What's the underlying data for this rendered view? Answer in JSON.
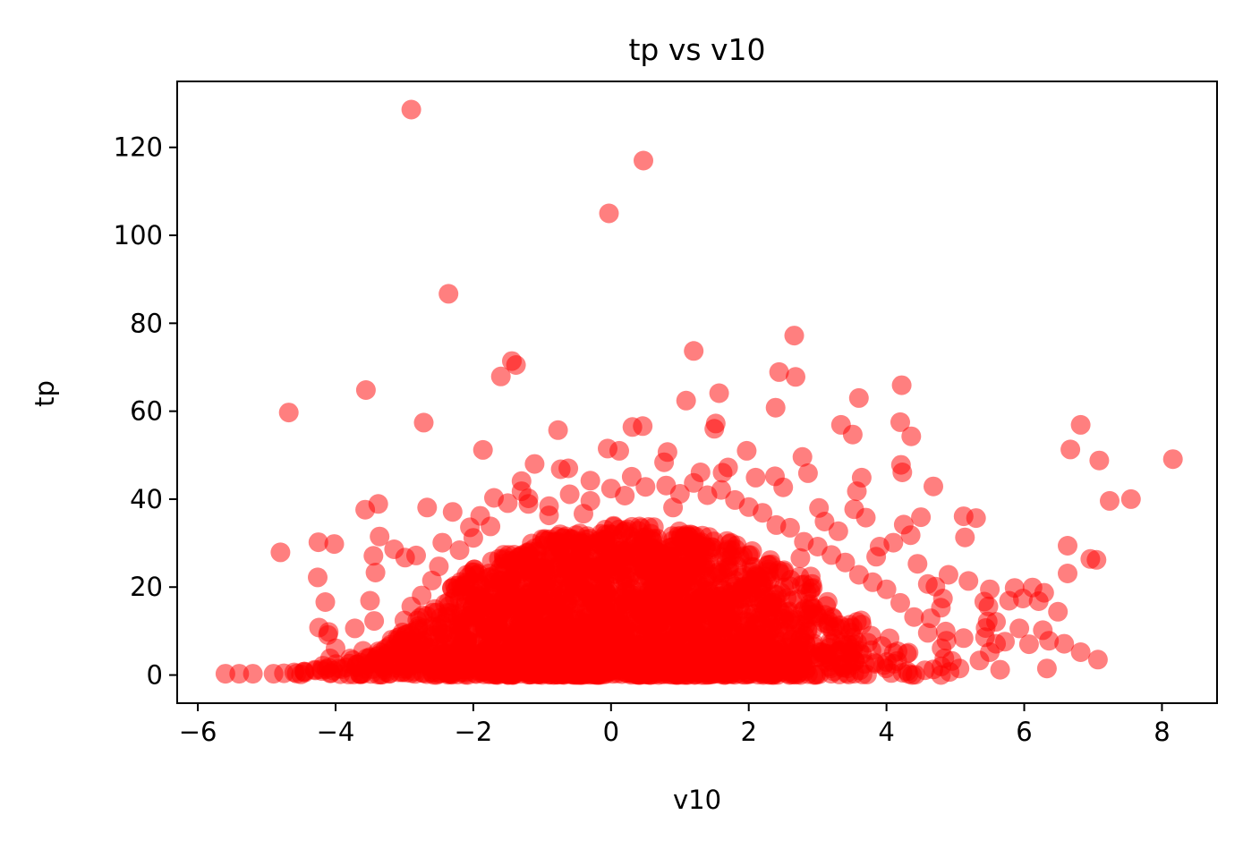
{
  "chart_data": {
    "type": "scatter",
    "title": "tp vs v10",
    "xlabel": "v10",
    "ylabel": "tp",
    "xlim": [
      -6.3,
      8.8
    ],
    "ylim": [
      -6.4,
      135
    ],
    "xticks": [
      -6,
      -4,
      -2,
      0,
      2,
      4,
      6,
      8
    ],
    "xtick_labels": [
      "−6",
      "−4",
      "−2",
      "0",
      "2",
      "4",
      "6",
      "8"
    ],
    "yticks": [
      0,
      20,
      40,
      60,
      80,
      100,
      120
    ],
    "ytick_labels": [
      "0",
      "20",
      "40",
      "60",
      "80",
      "100",
      "120"
    ],
    "grid": false,
    "legend": "none",
    "marker_color": "#ff0000",
    "marker_alpha": 0.5,
    "series": [
      {
        "points": [
          [
            -2.9,
            128.6
          ],
          [
            0.47,
            117
          ],
          [
            -0.03,
            105
          ],
          [
            -2.36,
            86.7
          ],
          [
            2.66,
            77.2
          ],
          [
            1.2,
            73.7
          ],
          [
            -1.44,
            71.4
          ],
          [
            -1.38,
            70.5
          ],
          [
            -1.6,
            67.9
          ],
          [
            2.44,
            68.9
          ],
          [
            2.68,
            67.8
          ],
          [
            4.22,
            65.9
          ],
          [
            -3.56,
            64.8
          ],
          [
            1.57,
            64.1
          ],
          [
            3.6,
            63
          ],
          [
            1.09,
            62.4
          ],
          [
            2.39,
            60.8
          ],
          [
            -4.68,
            59.7
          ],
          [
            -2.72,
            57.4
          ],
          [
            4.2,
            57.5
          ],
          [
            6.82,
            56.9
          ],
          [
            0.46,
            56.6
          ],
          [
            1.52,
            57.2
          ],
          [
            3.34,
            56.9
          ],
          [
            1.5,
            56
          ],
          [
            -0.77,
            55.7
          ],
          [
            3.51,
            54.7
          ],
          [
            4.36,
            54.3
          ],
          [
            0.31,
            56.4
          ],
          [
            -0.05,
            51.5
          ],
          [
            -1.86,
            51.2
          ],
          [
            1.97,
            51
          ],
          [
            2.78,
            49.6
          ],
          [
            0.82,
            50.7
          ],
          [
            8.16,
            49.1
          ],
          [
            6.67,
            51.3
          ],
          [
            7.09,
            48.8
          ],
          [
            0.77,
            48.4
          ],
          [
            0.12,
            51
          ],
          [
            -1.11,
            48
          ],
          [
            -0.62,
            47
          ],
          [
            1.62,
            46
          ],
          [
            4.23,
            46.1
          ],
          [
            4.21,
            47.8
          ],
          [
            4.68,
            42.9
          ],
          [
            2.38,
            45.2
          ],
          [
            2.86,
            45.9
          ],
          [
            0.3,
            45.1
          ],
          [
            -0.3,
            44.2
          ],
          [
            -0.73,
            46.8
          ],
          [
            -1.3,
            44.1
          ],
          [
            7.55,
            40
          ],
          [
            7.24,
            39.6
          ],
          [
            3.53,
            37.7
          ],
          [
            3.64,
            44.9
          ],
          [
            3.57,
            41.8
          ],
          [
            3.02,
            38
          ],
          [
            -3.38,
            38.9
          ],
          [
            -3.57,
            37.6
          ],
          [
            -2.67,
            38.1
          ],
          [
            -2.3,
            37.1
          ],
          [
            -4.25,
            30.2
          ],
          [
            -4.02,
            29.8
          ],
          [
            -4.8,
            27.9
          ],
          [
            -3.36,
            31.5
          ],
          [
            -3.15,
            28.6
          ],
          [
            -2.99,
            26.7
          ],
          [
            -2.83,
            27.2
          ],
          [
            -3.45,
            27.1
          ],
          [
            -2.45,
            30.1
          ],
          [
            -3.42,
            23.3
          ],
          [
            -4.26,
            22.2
          ],
          [
            -4.15,
            16.6
          ],
          [
            -3.5,
            16.9
          ],
          [
            -4.24,
            10.8
          ],
          [
            -4.1,
            9.8
          ],
          [
            -3.72,
            10.6
          ],
          [
            -3.44,
            12.3
          ],
          [
            -4.11,
            9.1
          ],
          [
            -4.0,
            6.1
          ],
          [
            -3.6,
            5.5
          ],
          [
            -3.2,
            6.9
          ],
          [
            -4.08,
            3.8
          ],
          [
            6.63,
            29.4
          ],
          [
            6.63,
            23.1
          ],
          [
            6.96,
            26.4
          ],
          [
            7.05,
            26.2
          ],
          [
            5.12,
            36.1
          ],
          [
            5.3,
            35.7
          ],
          [
            5.14,
            31.3
          ],
          [
            6.29,
            18.7
          ],
          [
            6.12,
            19.9
          ],
          [
            5.86,
            19.8
          ],
          [
            5.78,
            16.9
          ],
          [
            6.21,
            16.8
          ],
          [
            5.98,
            17.4
          ],
          [
            5.5,
            19.5
          ],
          [
            5.48,
            15.6
          ],
          [
            5.47,
            12.2
          ],
          [
            5.44,
            10.7
          ],
          [
            5.43,
            8.6
          ],
          [
            5.59,
            12.1
          ],
          [
            5.42,
            16.7
          ],
          [
            6.49,
            14.4
          ],
          [
            5.93,
            10.6
          ],
          [
            6.27,
            10.2
          ],
          [
            6.36,
            7.8
          ],
          [
            6.07,
            7.0
          ],
          [
            6.58,
            7.1
          ],
          [
            6.33,
            1.5
          ],
          [
            6.82,
            5.2
          ],
          [
            7.07,
            3.5
          ],
          [
            5.65,
            1.2
          ],
          [
            5.59,
            7.1
          ],
          [
            5.72,
            7.6
          ],
          [
            5.5,
            5.2
          ],
          [
            5.35,
            3.3
          ],
          [
            5.12,
            8.4
          ],
          [
            5.19,
            21.4
          ],
          [
            4.9,
            22.8
          ],
          [
            4.79,
            15.3
          ],
          [
            4.86,
            9.9
          ],
          [
            4.87,
            7.8
          ],
          [
            4.64,
            12.9
          ],
          [
            4.71,
            20.1
          ],
          [
            4.82,
            17.4
          ],
          [
            5.06,
            1.5
          ],
          [
            4.68,
            1.3
          ],
          [
            4.84,
            3.8
          ],
          [
            -5.6,
            0.3
          ],
          [
            -5.4,
            0.3
          ],
          [
            -5.2,
            0.3
          ],
          [
            -4.9,
            0.3
          ],
          [
            -4.75,
            0.4
          ],
          [
            -4.6,
            0.6
          ],
          [
            -4.45,
            0.8
          ],
          [
            -4.3,
            1.2
          ],
          [
            -4.2,
            0.9
          ],
          [
            -4.1,
            1.7
          ],
          [
            -3.95,
            1.5
          ],
          [
            -3.8,
            2.6
          ],
          [
            -3.7,
            1.8
          ],
          [
            -3.55,
            3.8
          ],
          [
            -3.4,
            4.2
          ],
          [
            -3.25,
            4.8
          ],
          [
            -3.1,
            8.5
          ],
          [
            -3.0,
            12.4
          ],
          [
            -2.9,
            15.6
          ],
          [
            -2.75,
            18.1
          ],
          [
            -2.6,
            21.5
          ],
          [
            -2.5,
            24.7
          ],
          [
            -2.2,
            28.4
          ],
          [
            -2.05,
            33.6
          ],
          [
            -1.9,
            36.2
          ],
          [
            -1.7,
            40.3
          ],
          [
            -1.5,
            39.1
          ],
          [
            -1.3,
            41.8
          ],
          [
            -1.2,
            40.2
          ],
          [
            -0.9,
            38.4
          ],
          [
            -0.6,
            41.1
          ],
          [
            -0.3,
            39.6
          ],
          [
            0.0,
            42.4
          ],
          [
            0.2,
            40.8
          ],
          [
            0.5,
            42.8
          ],
          [
            0.8,
            43.1
          ],
          [
            1.0,
            41.2
          ],
          [
            1.2,
            43.7
          ],
          [
            1.4,
            40.9
          ],
          [
            1.6,
            42.1
          ],
          [
            1.8,
            39.8
          ],
          [
            2.0,
            38.2
          ],
          [
            2.2,
            36.9
          ],
          [
            2.4,
            34.1
          ],
          [
            2.6,
            33.5
          ],
          [
            2.8,
            30.3
          ],
          [
            3.0,
            29.2
          ],
          [
            3.2,
            27.3
          ],
          [
            3.4,
            25.6
          ],
          [
            3.6,
            22.8
          ],
          [
            3.8,
            21.1
          ],
          [
            4.0,
            19.5
          ],
          [
            4.2,
            16.4
          ],
          [
            4.4,
            13.2
          ],
          [
            4.6,
            9.6
          ],
          [
            4.8,
            6.1
          ],
          [
            4.95,
            3.2
          ],
          [
            3.7,
            35.8
          ],
          [
            3.9,
            29.2
          ],
          [
            4.1,
            30.1
          ],
          [
            4.25,
            34.2
          ],
          [
            4.35,
            31.8
          ],
          [
            4.5,
            35.9
          ],
          [
            4.45,
            25.3
          ],
          [
            4.6,
            20.7
          ],
          [
            3.85,
            26.9
          ],
          [
            3.3,
            32.7
          ],
          [
            3.1,
            34.9
          ],
          [
            2.9,
            22.4
          ],
          [
            2.75,
            26.6
          ],
          [
            -2.0,
            31.2
          ],
          [
            -1.75,
            33.8
          ],
          [
            -1.2,
            38.9
          ],
          [
            -0.9,
            36.3
          ],
          [
            1.3,
            46.1
          ],
          [
            1.7,
            47.2
          ],
          [
            2.1,
            44.9
          ],
          [
            2.5,
            42.7
          ],
          [
            -0.4,
            36.7
          ],
          [
            0.9,
            38.1
          ]
        ]
      }
    ],
    "dense_region": {
      "description": "",
      "x_range": [
        -5.0,
        5.2
      ],
      "ymax_profile": [
        [
          -5.0,
          0.5
        ],
        [
          -4.5,
          1.2
        ],
        [
          -4.0,
          2.8
        ],
        [
          -3.5,
          5.5
        ],
        [
          -3.0,
          10
        ],
        [
          -2.5,
          18
        ],
        [
          -2.0,
          24
        ],
        [
          -1.5,
          28
        ],
        [
          -1.0,
          31
        ],
        [
          -0.5,
          33
        ],
        [
          0.0,
          34
        ],
        [
          0.5,
          34
        ],
        [
          1.0,
          33
        ],
        [
          1.5,
          31.5
        ],
        [
          2.0,
          29
        ],
        [
          2.5,
          25
        ],
        [
          3.0,
          20
        ],
        [
          3.5,
          15
        ],
        [
          4.0,
          9
        ],
        [
          4.5,
          4.5
        ],
        [
          5.0,
          1.5
        ],
        [
          5.2,
          0.6
        ]
      ],
      "count": 2600
    }
  }
}
